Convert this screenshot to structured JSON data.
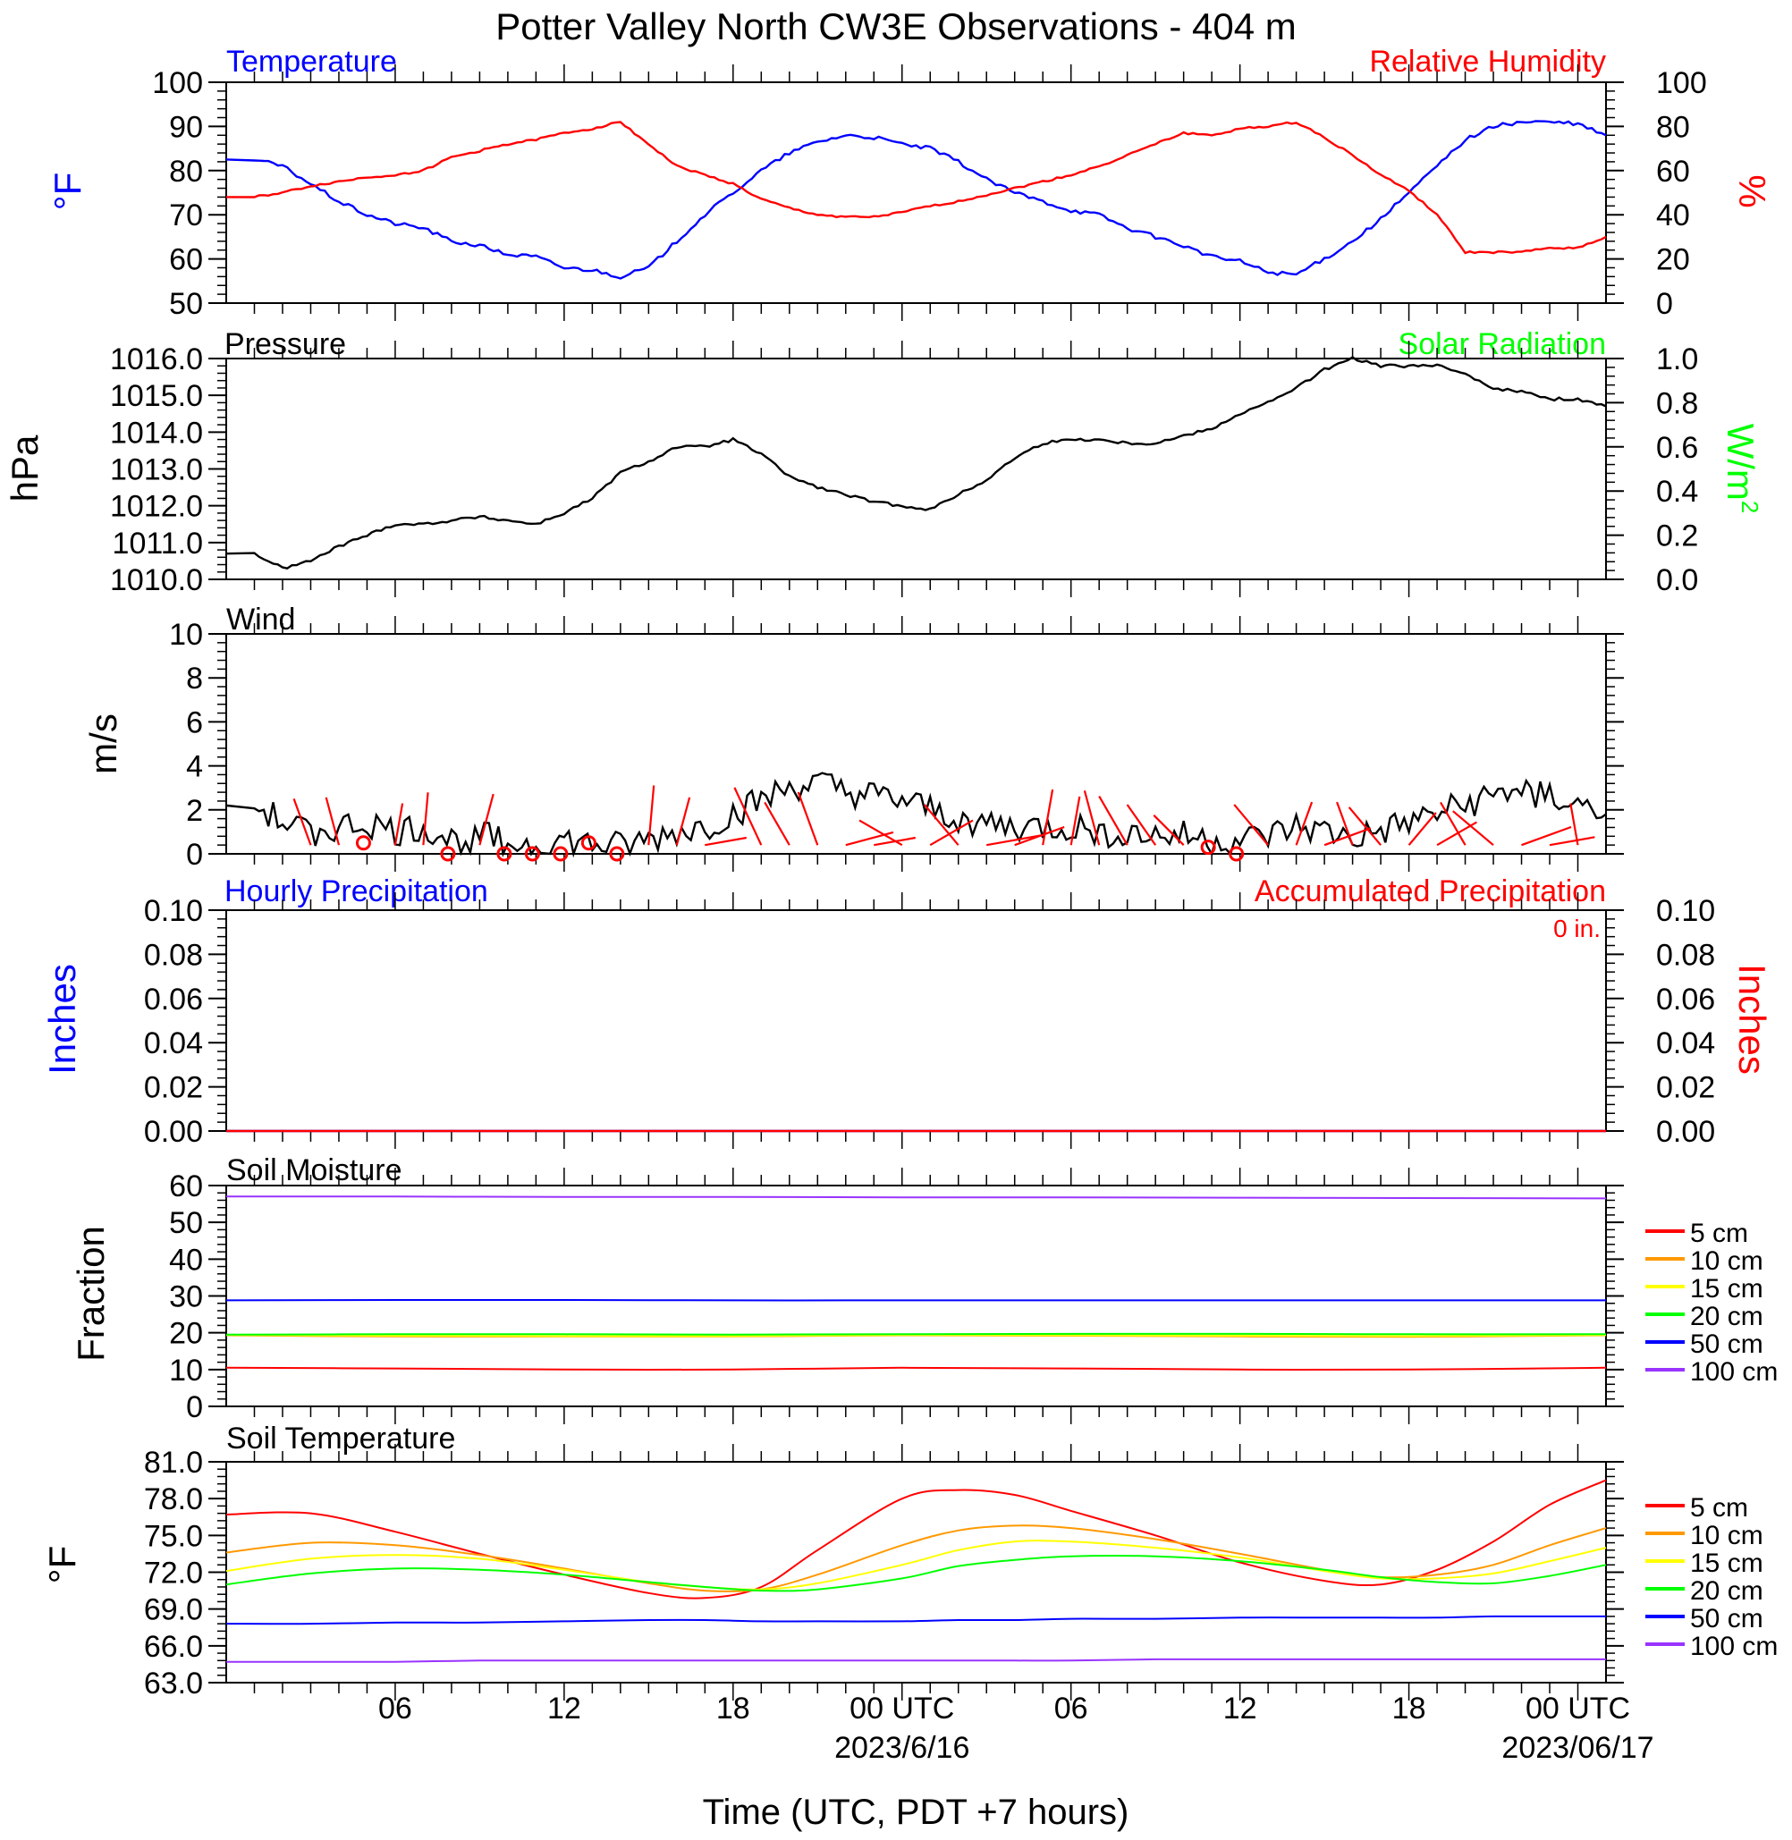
{
  "figure": {
    "title": "Potter Valley North CW3E Observations - 404 m",
    "xlabel": "Time (UTC, PDT +7 hours)",
    "x_ticks": [
      {
        "hour": 6,
        "label": "06",
        "date": ""
      },
      {
        "hour": 12,
        "label": "12",
        "date": ""
      },
      {
        "hour": 18,
        "label": "18",
        "date": ""
      },
      {
        "hour": 24,
        "label": "00 UTC",
        "date": "2023/6/16"
      },
      {
        "hour": 30,
        "label": "06",
        "date": ""
      },
      {
        "hour": 36,
        "label": "12",
        "date": ""
      },
      {
        "hour": 42,
        "label": "18",
        "date": ""
      },
      {
        "hour": 48,
        "label": "00 UTC",
        "date": "2023/06/17"
      }
    ]
  },
  "colors": {
    "temperature": "#0000ff",
    "humidity": "#ff0000",
    "pressure": "#000000",
    "solar": "#00ff00",
    "wind": "#000000",
    "wind_barb": "#ff0000",
    "hourly_precip": "#0000ff",
    "accum_precip": "#ff0000",
    "depth_5": "#ff0000",
    "depth_10": "#ff9900",
    "depth_15": "#ffff00",
    "depth_20": "#00ff00",
    "depth_50": "#0000ff",
    "depth_100": "#9933ff"
  },
  "chart_data": [
    {
      "id": "temp_rh",
      "type": "line",
      "title_left": "Temperature",
      "title_right": "Relative Humidity",
      "ylabel_left": "°F",
      "ylabel_right": "%",
      "ylim_left": [
        50,
        100
      ],
      "ylim_right": [
        0,
        100
      ],
      "yticks_left": [
        "50",
        "60",
        "70",
        "80",
        "90",
        "100"
      ],
      "yticks_right": [
        "0",
        "20",
        "40",
        "60",
        "80",
        "100"
      ],
      "x_hours": [
        1,
        2,
        3,
        4,
        5,
        6,
        7,
        8,
        9,
        10,
        11,
        12,
        13,
        14,
        15,
        16,
        17,
        18,
        19,
        20,
        21,
        22,
        23,
        24,
        25,
        26,
        27,
        28,
        29,
        30,
        31,
        32,
        33,
        34,
        35,
        36,
        37,
        38,
        39,
        40,
        41,
        42,
        43,
        44,
        45,
        46,
        47,
        48,
        49
      ],
      "series": [
        {
          "name": "Temperature",
          "axis": "left",
          "color_key": "temperature",
          "values": [
            82.5,
            81,
            77,
            73,
            70,
            68,
            67,
            64,
            63,
            61,
            60.5,
            58,
            57.5,
            56,
            58,
            64,
            70,
            75,
            80,
            84,
            86.5,
            88,
            87.5,
            86,
            85,
            82,
            78,
            75,
            73,
            71,
            70,
            67,
            65,
            63,
            60.5,
            59.5,
            57,
            56.5,
            60,
            64,
            69,
            75,
            81,
            87,
            90,
            91,
            91,
            90.5,
            88
          ]
        },
        {
          "name": "Relative Humidity",
          "axis": "right",
          "color_key": "humidity",
          "values": [
            48,
            50,
            53,
            55,
            57,
            58,
            60,
            66,
            69,
            72,
            74,
            77,
            79,
            82,
            72,
            62,
            58,
            54,
            47,
            43,
            40,
            39,
            39,
            41,
            44,
            46,
            49,
            52,
            55,
            58,
            62,
            67,
            72,
            77,
            76,
            79,
            80,
            82,
            75,
            67,
            58,
            51,
            40,
            23,
            23,
            23,
            25,
            25,
            30
          ]
        }
      ]
    },
    {
      "id": "pressure_solar",
      "type": "line",
      "title_left": "Pressure",
      "title_right": "Solar Radiation",
      "ylabel_left": "hPa",
      "ylabel_right": "W/m",
      "ylabel_right_sup": "2",
      "ylim_left": [
        1010,
        1016
      ],
      "ylim_right": [
        0,
        1
      ],
      "yticks_left": [
        "1010.0",
        "1011.0",
        "1012.0",
        "1013.0",
        "1014.0",
        "1015.0",
        "1016.0"
      ],
      "yticks_right": [
        "0.0",
        "0.2",
        "0.4",
        "0.6",
        "0.8",
        "1.0"
      ],
      "x_hours": [
        1,
        2,
        3,
        4,
        5,
        6,
        7,
        8,
        9,
        10,
        11,
        12,
        13,
        14,
        15,
        16,
        17,
        18,
        19,
        20,
        21,
        22,
        23,
        24,
        25,
        26,
        27,
        28,
        29,
        30,
        31,
        32,
        33,
        34,
        35,
        36,
        37,
        38,
        39,
        40,
        41,
        42,
        43,
        44,
        45,
        46,
        47,
        48,
        49
      ],
      "series": [
        {
          "name": "Pressure",
          "axis": "left",
          "color_key": "pressure",
          "values": [
            1010.7,
            1010.3,
            1010.5,
            1010.9,
            1011.2,
            1011.5,
            1011.5,
            1011.6,
            1011.7,
            1011.6,
            1011.5,
            1011.8,
            1012.2,
            1012.9,
            1013.2,
            1013.6,
            1013.6,
            1013.8,
            1013.4,
            1012.8,
            1012.5,
            1012.3,
            1012.1,
            1012.0,
            1011.9,
            1012.3,
            1012.7,
            1013.3,
            1013.7,
            1013.8,
            1013.8,
            1013.7,
            1013.7,
            1013.9,
            1014.1,
            1014.5,
            1014.8,
            1015.2,
            1015.7,
            1016.0,
            1015.8,
            1015.8,
            1015.8,
            1015.6,
            1015.2,
            1015.1,
            1014.9,
            1014.9,
            1014.7
          ]
        }
      ]
    },
    {
      "id": "wind",
      "type": "line",
      "title_left": "Wind",
      "ylabel_left": "m/s",
      "ylim_left": [
        0,
        10
      ],
      "yticks_left": [
        "0",
        "2",
        "4",
        "6",
        "8",
        "10"
      ],
      "x_hours": [
        1,
        2,
        3,
        4,
        5,
        6,
        7,
        8,
        9,
        10,
        11,
        12,
        13,
        14,
        15,
        16,
        17,
        18,
        19,
        20,
        21,
        22,
        23,
        24,
        25,
        26,
        27,
        28,
        29,
        30,
        31,
        32,
        33,
        34,
        35,
        36,
        37,
        38,
        39,
        40,
        41,
        42,
        43,
        44,
        45,
        46,
        47,
        48,
        49
      ],
      "series": [
        {
          "name": "Wind speed",
          "axis": "left",
          "color_key": "wind",
          "values": [
            2.2,
            1.4,
            1.0,
            1.2,
            1.4,
            1.0,
            1.2,
            0.6,
            0.8,
            0.5,
            0.4,
            0.6,
            0.4,
            0.3,
            0.6,
            1.0,
            1.2,
            1.8,
            2.4,
            3.0,
            3.2,
            2.8,
            2.6,
            2.4,
            2.0,
            1.6,
            1.4,
            1.2,
            1.2,
            1.2,
            1.0,
            1.0,
            0.8,
            0.8,
            0.6,
            0.6,
            0.8,
            1.2,
            1.0,
            0.7,
            1.0,
            1.4,
            1.8,
            2.2,
            2.6,
            3.0,
            2.6,
            2.2,
            1.8
          ]
        }
      ],
      "calm_hours": [
        5,
        8,
        10,
        11,
        12,
        13,
        14,
        35,
        36
      ],
      "barbs": [
        {
          "hour": 3,
          "len": 1.4,
          "ang": -20
        },
        {
          "hour": 4,
          "len": 1.4,
          "ang": -15
        },
        {
          "hour": 6,
          "len": 1.2,
          "ang": 10
        },
        {
          "hour": 7,
          "len": 1.5,
          "ang": 5
        },
        {
          "hour": 9,
          "len": 1.5,
          "ang": 15
        },
        {
          "hour": 15,
          "len": 1.7,
          "ang": 5
        },
        {
          "hour": 16,
          "len": 1.4,
          "ang": 15
        },
        {
          "hour": 17,
          "len": 1.2,
          "ang": 80
        },
        {
          "hour": 19,
          "len": 1.8,
          "ang": -25
        },
        {
          "hour": 20,
          "len": 1.4,
          "ang": -30
        },
        {
          "hour": 21,
          "len": 1.6,
          "ang": -20
        },
        {
          "hour": 22,
          "len": 1.4,
          "ang": 75
        },
        {
          "hour": 23,
          "len": 1.2,
          "ang": 80
        },
        {
          "hour": 24,
          "len": 1.4,
          "ang": -60
        },
        {
          "hour": 25,
          "len": 1.4,
          "ang": 60
        },
        {
          "hour": 26,
          "len": 1.5,
          "ang": -40
        },
        {
          "hour": 27,
          "len": 1.6,
          "ang": 80
        },
        {
          "hour": 28,
          "len": 1.5,
          "ang": 70
        },
        {
          "hour": 29,
          "len": 1.6,
          "ang": 10
        },
        {
          "hour": 30,
          "len": 1.4,
          "ang": 10
        },
        {
          "hour": 31,
          "len": 1.6,
          "ang": -15
        },
        {
          "hour": 32,
          "len": 1.6,
          "ang": -30
        },
        {
          "hour": 33,
          "len": 1.4,
          "ang": -35
        },
        {
          "hour": 34,
          "len": 1.2,
          "ang": -45
        },
        {
          "hour": 37,
          "len": 1.5,
          "ang": -40
        },
        {
          "hour": 38,
          "len": 1.3,
          "ang": 20
        },
        {
          "hour": 39,
          "len": 1.4,
          "ang": 70
        },
        {
          "hour": 40,
          "len": 1.3,
          "ang": -20
        },
        {
          "hour": 41,
          "len": 1.4,
          "ang": -40
        },
        {
          "hour": 42,
          "len": 1.2,
          "ang": 40
        },
        {
          "hour": 43,
          "len": 1.3,
          "ang": 60
        },
        {
          "hour": 44,
          "len": 1.4,
          "ang": -30
        },
        {
          "hour": 45,
          "len": 1.5,
          "ang": -50
        },
        {
          "hour": 46,
          "len": 1.5,
          "ang": 70
        },
        {
          "hour": 47,
          "len": 1.3,
          "ang": 80
        },
        {
          "hour": 48,
          "len": 1.2,
          "ang": -10
        }
      ]
    },
    {
      "id": "precip",
      "type": "line",
      "title_left": "Hourly Precipitation",
      "title_right": "Accumulated Precipitation",
      "total_label": "0 in.",
      "ylabel_left": "Inches",
      "ylabel_right": "Inches",
      "ylim_left": [
        0,
        0.1
      ],
      "ylim_right": [
        0,
        0.1
      ],
      "yticks_left": [
        "0.00",
        "0.02",
        "0.04",
        "0.06",
        "0.08",
        "0.10"
      ],
      "yticks_right": [
        "0.00",
        "0.02",
        "0.04",
        "0.06",
        "0.08",
        "0.10"
      ],
      "x_hours": [
        0,
        49
      ],
      "series": [
        {
          "name": "Hourly Precipitation",
          "axis": "left",
          "color_key": "hourly_precip",
          "values": [
            0,
            0
          ]
        },
        {
          "name": "Accumulated Precipitation",
          "axis": "right",
          "color_key": "accum_precip",
          "values": [
            0,
            0
          ]
        }
      ]
    },
    {
      "id": "soil_moisture",
      "type": "line",
      "title_left": "Soil Moisture",
      "ylabel_left": "Fraction",
      "ylim_left": [
        0,
        60
      ],
      "yticks_left": [
        "0",
        "10",
        "20",
        "30",
        "40",
        "50",
        "60"
      ],
      "x_hours": [
        0,
        6,
        12,
        18,
        24,
        30,
        36,
        42,
        49
      ],
      "series": [
        {
          "name": "5 cm",
          "color_key": "depth_5",
          "values": [
            10.5,
            10.3,
            10.0,
            10.0,
            10.5,
            10.3,
            10.0,
            10.0,
            10.5
          ]
        },
        {
          "name": "10 cm",
          "color_key": "depth_10",
          "values": [
            19.3,
            19.0,
            19.0,
            19.0,
            19.3,
            19.2,
            19.0,
            18.9,
            19.3
          ]
        },
        {
          "name": "15 cm",
          "color_key": "depth_15",
          "values": [
            19.4,
            19.2,
            19.1,
            19.1,
            19.4,
            19.3,
            19.2,
            19.1,
            19.4
          ]
        },
        {
          "name": "20 cm",
          "color_key": "depth_20",
          "values": [
            19.5,
            19.6,
            19.6,
            19.5,
            19.6,
            19.7,
            19.7,
            19.6,
            19.6
          ]
        },
        {
          "name": "50 cm",
          "color_key": "depth_50",
          "values": [
            28.8,
            28.9,
            28.9,
            28.8,
            28.8,
            28.8,
            28.8,
            28.8,
            28.8
          ]
        },
        {
          "name": "100 cm",
          "color_key": "depth_100",
          "values": [
            57.0,
            57.0,
            56.9,
            56.9,
            56.8,
            56.8,
            56.7,
            56.6,
            56.5
          ]
        }
      ]
    },
    {
      "id": "soil_temperature",
      "type": "line",
      "title_left": "Soil Temperature",
      "ylabel_left": "°F",
      "ylim_left": [
        63,
        81
      ],
      "yticks_left": [
        "63.0",
        "66.0",
        "69.0",
        "72.0",
        "75.0",
        "78.0",
        "81.0"
      ],
      "x_hours": [
        0,
        3,
        6,
        9,
        12,
        15,
        17,
        19,
        21,
        24,
        26,
        28,
        30,
        33,
        36,
        39,
        41,
        43,
        45,
        47,
        49
      ],
      "series": [
        {
          "name": "5 cm",
          "color_key": "depth_5",
          "values": [
            76.7,
            76.8,
            75.3,
            73.5,
            71.8,
            70.3,
            69.9,
            70.8,
            73.8,
            78.0,
            78.7,
            78.3,
            77.0,
            75.0,
            72.8,
            71.3,
            71.0,
            72.2,
            74.5,
            77.5,
            79.5
          ]
        },
        {
          "name": "10 cm",
          "color_key": "depth_10",
          "values": [
            73.6,
            74.4,
            74.2,
            73.4,
            72.3,
            71.1,
            70.5,
            70.6,
            71.8,
            74.2,
            75.4,
            75.8,
            75.6,
            74.7,
            73.5,
            72.2,
            71.6,
            71.8,
            72.6,
            74.2,
            75.6
          ]
        },
        {
          "name": "15 cm",
          "color_key": "depth_15",
          "values": [
            72.1,
            73.1,
            73.4,
            73.1,
            72.2,
            71.2,
            70.8,
            70.6,
            71.1,
            72.6,
            73.8,
            74.5,
            74.5,
            74.0,
            73.2,
            72.1,
            71.5,
            71.5,
            71.9,
            72.9,
            74.0
          ]
        },
        {
          "name": "20 cm",
          "color_key": "depth_20",
          "values": [
            71.0,
            71.9,
            72.3,
            72.2,
            71.8,
            71.2,
            70.8,
            70.5,
            70.6,
            71.5,
            72.5,
            73.0,
            73.3,
            73.3,
            72.9,
            72.2,
            71.6,
            71.2,
            71.1,
            71.7,
            72.6
          ]
        },
        {
          "name": "50 cm",
          "color_key": "depth_50",
          "values": [
            67.8,
            67.8,
            67.9,
            67.9,
            68.0,
            68.1,
            68.1,
            68.0,
            68.0,
            68.0,
            68.1,
            68.1,
            68.2,
            68.2,
            68.3,
            68.3,
            68.3,
            68.3,
            68.4,
            68.4,
            68.4
          ]
        },
        {
          "name": "100 cm",
          "color_key": "depth_100",
          "values": [
            64.7,
            64.7,
            64.7,
            64.8,
            64.8,
            64.8,
            64.8,
            64.8,
            64.8,
            64.8,
            64.8,
            64.8,
            64.8,
            64.9,
            64.9,
            64.9,
            64.9,
            64.9,
            64.9,
            64.9,
            64.9
          ]
        }
      ]
    }
  ]
}
